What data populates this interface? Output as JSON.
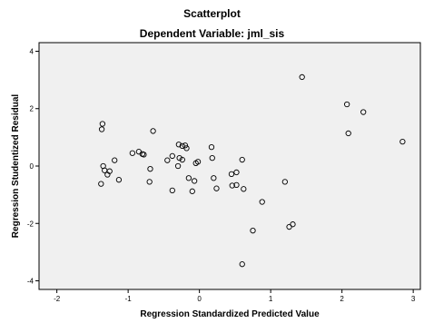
{
  "chart_data": {
    "type": "scatter",
    "title": "Scatterplot",
    "subtitle": "Dependent Variable: jml_sis",
    "xlabel": "Regression Standardized Predicted Value",
    "ylabel": "Regression Studentized Residual",
    "xlim": [
      -2.25,
      3.1
    ],
    "ylim": [
      -4.3,
      4.3
    ],
    "xticks": [
      -2,
      -1,
      0,
      1,
      2,
      3
    ],
    "yticks": [
      -4,
      -2,
      0,
      2,
      4
    ],
    "grid": false,
    "colors": {
      "plot_background": "#f0f0f0",
      "marker_edge": "#000000",
      "axis": "#000000"
    },
    "points": [
      {
        "x": -1.36,
        "y": 1.47
      },
      {
        "x": -1.37,
        "y": 1.28
      },
      {
        "x": -1.35,
        "y": 0.0
      },
      {
        "x": -1.33,
        "y": -0.15
      },
      {
        "x": -1.29,
        "y": -0.3
      },
      {
        "x": -1.26,
        "y": -0.18
      },
      {
        "x": -1.19,
        "y": 0.2
      },
      {
        "x": -1.13,
        "y": -0.48
      },
      {
        "x": -1.38,
        "y": -0.62
      },
      {
        "x": -0.94,
        "y": 0.45
      },
      {
        "x": -0.85,
        "y": 0.5
      },
      {
        "x": -0.8,
        "y": 0.42
      },
      {
        "x": -0.78,
        "y": 0.4
      },
      {
        "x": -0.69,
        "y": -0.1
      },
      {
        "x": -0.7,
        "y": -0.55
      },
      {
        "x": -0.65,
        "y": 1.22
      },
      {
        "x": -0.45,
        "y": 0.2
      },
      {
        "x": -0.38,
        "y": 0.35
      },
      {
        "x": -0.38,
        "y": -0.85
      },
      {
        "x": -0.3,
        "y": 0.0
      },
      {
        "x": -0.29,
        "y": 0.75
      },
      {
        "x": -0.24,
        "y": 0.7
      },
      {
        "x": -0.2,
        "y": 0.72
      },
      {
        "x": -0.18,
        "y": 0.62
      },
      {
        "x": -0.28,
        "y": 0.28
      },
      {
        "x": -0.24,
        "y": 0.22
      },
      {
        "x": -0.15,
        "y": -0.42
      },
      {
        "x": -0.1,
        "y": -0.88
      },
      {
        "x": -0.05,
        "y": 0.1
      },
      {
        "x": -0.02,
        "y": 0.15
      },
      {
        "x": -0.07,
        "y": -0.52
      },
      {
        "x": 0.17,
        "y": 0.66
      },
      {
        "x": 0.18,
        "y": 0.28
      },
      {
        "x": 0.2,
        "y": -0.42
      },
      {
        "x": 0.24,
        "y": -0.78
      },
      {
        "x": 0.45,
        "y": -0.28
      },
      {
        "x": 0.52,
        "y": -0.22
      },
      {
        "x": 0.46,
        "y": -0.68
      },
      {
        "x": 0.52,
        "y": -0.66
      },
      {
        "x": 0.6,
        "y": 0.22
      },
      {
        "x": 0.62,
        "y": -0.8
      },
      {
        "x": 0.6,
        "y": -3.42
      },
      {
        "x": 0.75,
        "y": -2.25
      },
      {
        "x": 0.88,
        "y": -1.25
      },
      {
        "x": 1.2,
        "y": -0.55
      },
      {
        "x": 1.26,
        "y": -2.12
      },
      {
        "x": 1.31,
        "y": -2.03
      },
      {
        "x": 1.44,
        "y": 3.1
      },
      {
        "x": 2.07,
        "y": 2.15
      },
      {
        "x": 2.09,
        "y": 1.14
      },
      {
        "x": 2.3,
        "y": 1.88
      },
      {
        "x": 2.85,
        "y": 0.85
      }
    ]
  }
}
